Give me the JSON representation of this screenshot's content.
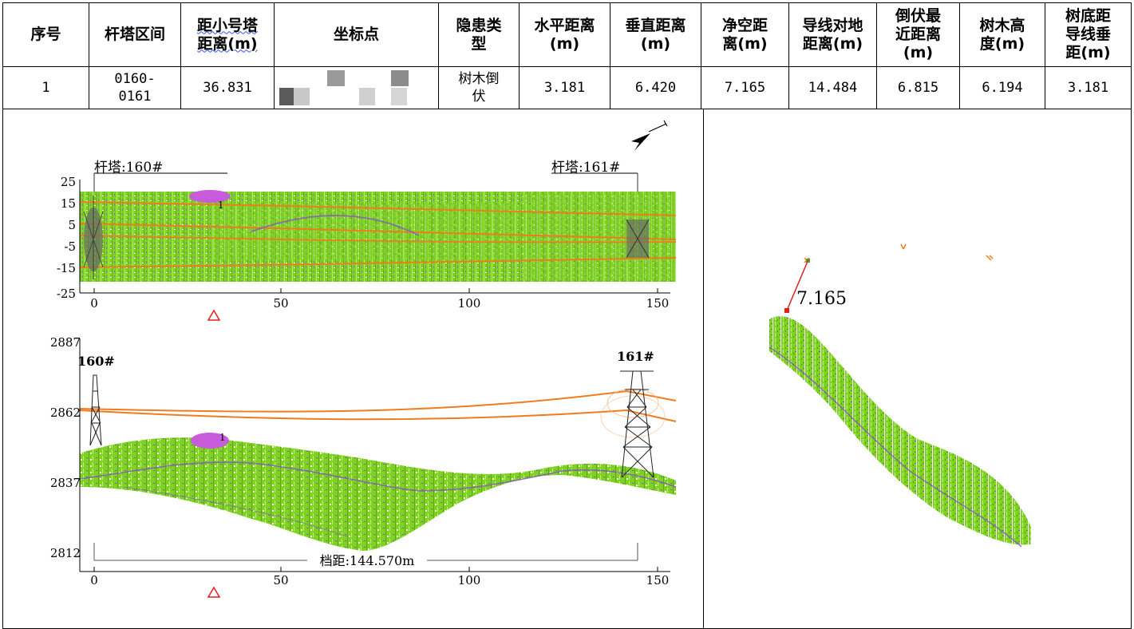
{
  "table": {
    "headers": [
      "序号",
      "杆塔区间",
      "距小号塔\n距离(m)",
      "坐标点",
      "隐患类\n型",
      "水平距离\n(m)",
      "垂直距离\n(m)",
      "净空距\n离(m)",
      "导线对地\n距离(m)",
      "倒伏最\n近距离\n(m)",
      "树木高\n度(m)",
      "树底距\n导线垂\n距(m)"
    ],
    "row": {
      "index": "1",
      "tower_span": "0160-\n0161",
      "distance_small_tower": "36.831",
      "coordinate": "",
      "hazard_type": "树木倒\n伏",
      "horizontal_distance": "3.181",
      "vertical_distance": "6.420",
      "clearance_distance": "7.165",
      "conductor_ground_distance": "14.484",
      "nearest_fall_distance": "6.815",
      "tree_height": "6.194",
      "tree_base_vertical_distance": "3.181"
    }
  },
  "plan_view": {
    "tower_left_label": "杆塔:160#",
    "tower_right_label": "杆塔:161#",
    "y_ticks": [
      "25",
      "15",
      "5",
      "-5",
      "-15",
      "-25"
    ],
    "x_ticks": [
      "0",
      "50",
      "100",
      "150"
    ],
    "hazard_marker": "1"
  },
  "profile_view": {
    "tower_left_label": "160#",
    "tower_right_label": "161#",
    "y_ticks": [
      "2887",
      "2862",
      "2837",
      "2812"
    ],
    "x_ticks": [
      "0",
      "50",
      "100",
      "150"
    ],
    "span_label": "档距:144.570m",
    "hazard_marker": "1"
  },
  "cross_section": {
    "clearance_label": "7.165"
  },
  "colors": {
    "vegetation": "#7ed321",
    "vegetation_dark": "#5aa80e",
    "ground_purple": "#8a4fc8",
    "conductor": "#f07c1e",
    "hazard": "#c85adc",
    "clearance_line": "#e02020"
  },
  "icons": [
    "north-arrow-icon",
    "danger-triangle-icon"
  ]
}
